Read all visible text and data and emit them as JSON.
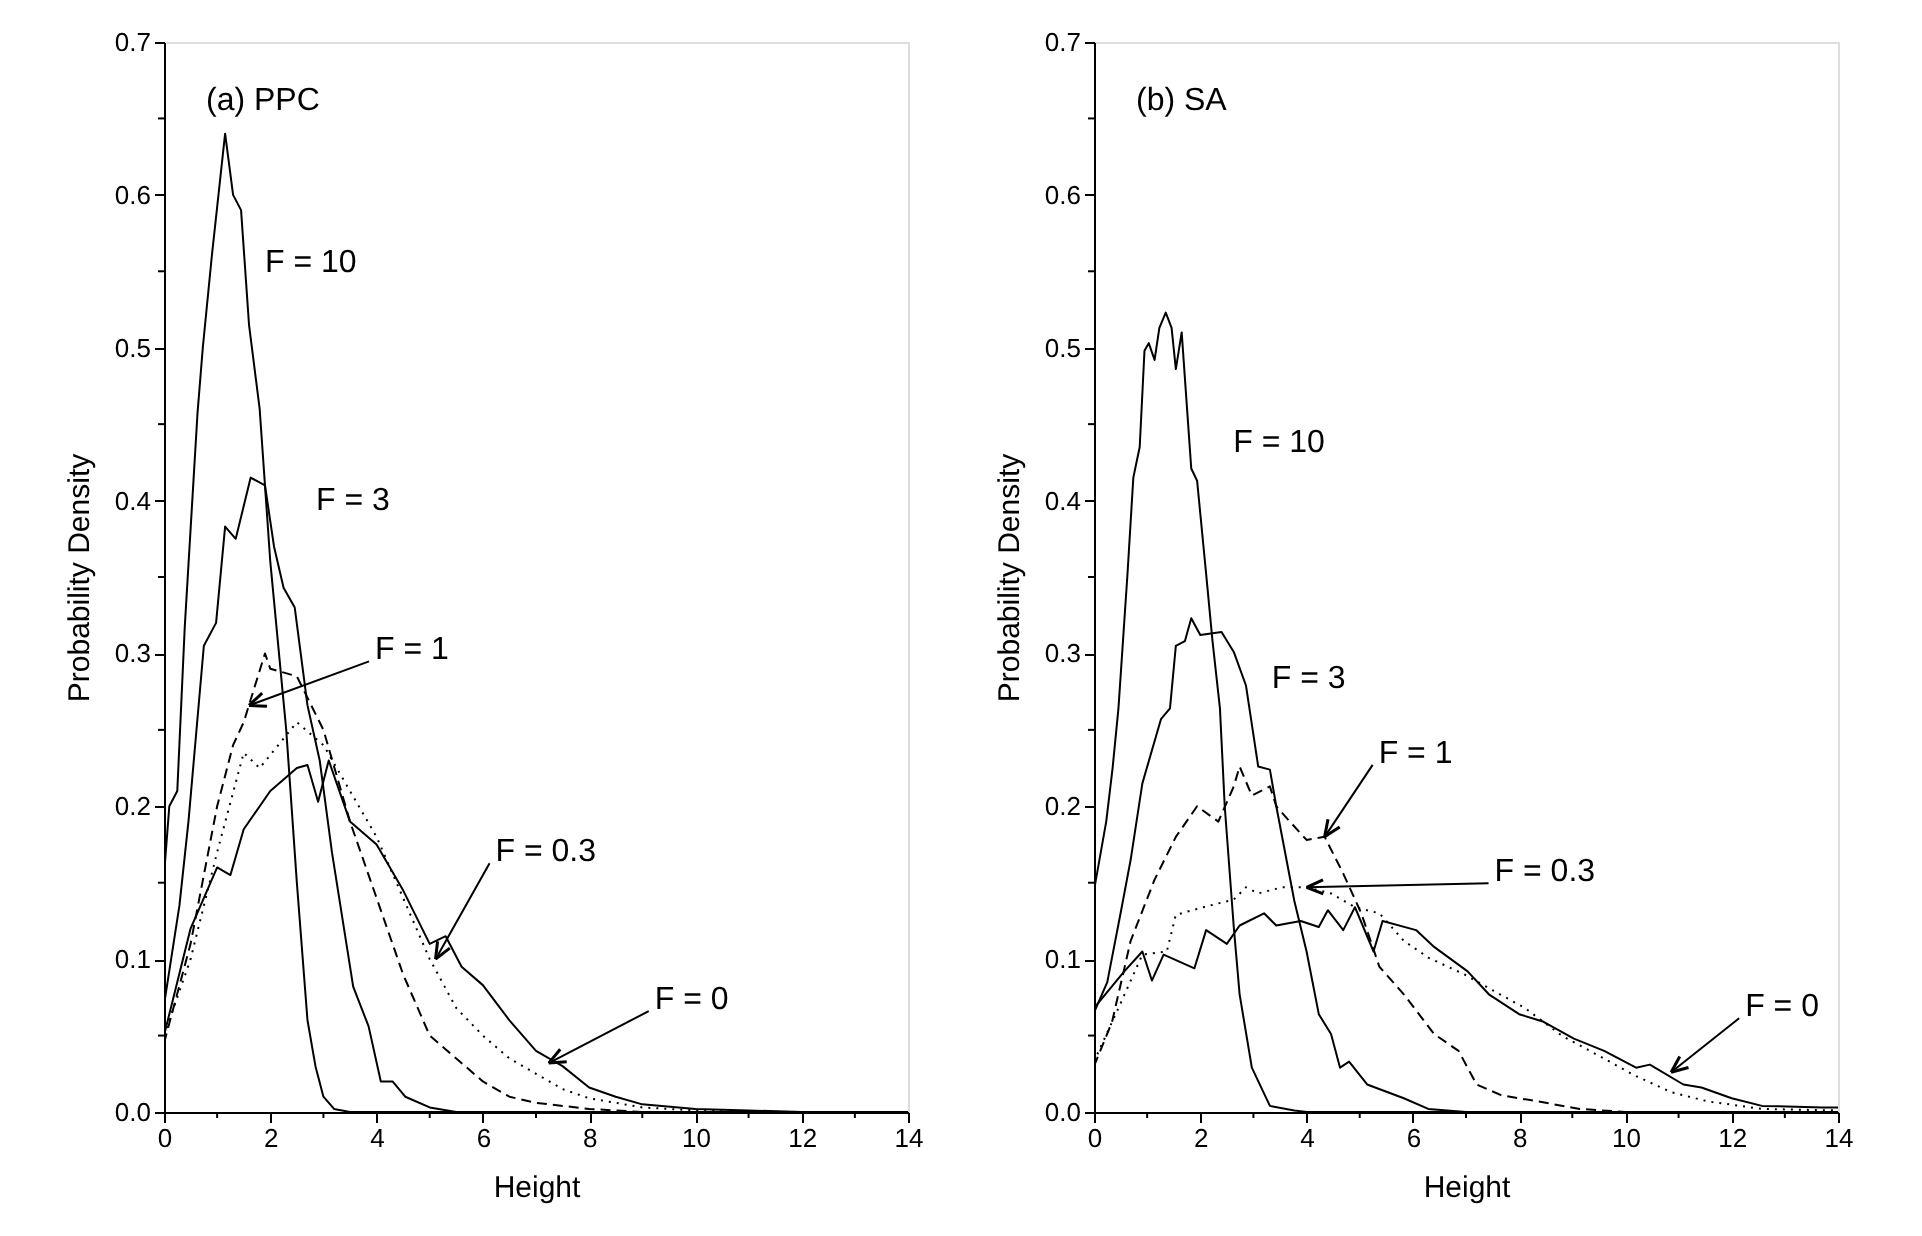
{
  "chart_data": [
    {
      "type": "line",
      "xlabel": "Height",
      "ylabel": "Probability Density",
      "xlim": [
        0,
        14
      ],
      "ylim": [
        0,
        0.7
      ],
      "xticks": [
        0,
        {
          "value": 1,
          "label": null
        },
        2,
        {
          "value": 3,
          "label": null
        },
        4,
        {
          "value": 5,
          "label": null
        },
        6,
        {
          "value": 7,
          "label": null
        },
        8,
        {
          "value": 9,
          "label": null
        },
        10,
        {
          "value": 11,
          "label": null
        },
        12,
        {
          "value": 13,
          "label": null
        },
        14
      ],
      "yticks": [
        {
          "value": 0,
          "label": "0.0"
        },
        {
          "value": 0.05,
          "label": null
        },
        0.1,
        {
          "value": 0.15,
          "label": null
        },
        0.2,
        {
          "value": 0.25,
          "label": null
        },
        0.3,
        {
          "value": 0.35,
          "label": null
        },
        0.4,
        {
          "value": 0.45,
          "label": null
        },
        0.5,
        {
          "value": 0.55,
          "label": null
        },
        0.6,
        {
          "value": 0.65,
          "label": null
        },
        0.7
      ],
      "grid": false,
      "marker": "none",
      "series": [
        {
          "color": "#000000",
          "line_style": "solid",
          "x": [
            0,
            0.5,
            1,
            1.25,
            1.5,
            2,
            2.5,
            2.7,
            2.9,
            3.1,
            3.5,
            4,
            4.5,
            5,
            5.3,
            5.6,
            6,
            6.5,
            7,
            7.5,
            8,
            8.5,
            9,
            10,
            11,
            12,
            14
          ],
          "values": [
            0.05,
            0.12,
            0.16,
            0.155,
            0.185,
            0.21,
            0.225,
            0.227,
            0.203,
            0.23,
            0.19,
            0.175,
            0.145,
            0.11,
            0.115,
            0.095,
            0.083,
            0.06,
            0.04,
            0.03,
            0.016,
            0.01,
            0.005,
            0.002,
            0.001,
            0,
            0
          ]
        },
        {
          "color": "#000000",
          "line_style": "dotted",
          "x": [
            0,
            0.5,
            1,
            1.5,
            1.8,
            2.5,
            3,
            3.5,
            4,
            4.5,
            5,
            5.5,
            6,
            6.5,
            7,
            7.5,
            8,
            9,
            10,
            11,
            14
          ],
          "values": [
            0.05,
            0.1,
            0.17,
            0.235,
            0.225,
            0.255,
            0.24,
            0.21,
            0.18,
            0.14,
            0.1,
            0.068,
            0.05,
            0.035,
            0.025,
            0.015,
            0.009,
            0.003,
            0.001,
            0,
            0
          ]
        },
        {
          "color": "#000000",
          "line_style": "dashed",
          "x": [
            0,
            0.5,
            1,
            1.3,
            1.5,
            1.9,
            2,
            2.5,
            3,
            3.5,
            4,
            4.5,
            5,
            5.5,
            6,
            6.5,
            7,
            8,
            9,
            14
          ],
          "values": [
            0.045,
            0.11,
            0.2,
            0.24,
            0.255,
            0.3,
            0.29,
            0.285,
            0.25,
            0.19,
            0.14,
            0.09,
            0.05,
            0.035,
            0.02,
            0.01,
            0.006,
            0.002,
            0,
            0
          ]
        },
        {
          "color": "#000000",
          "line_style": "solid",
          "x": [
            0,
            0.29,
            0.46,
            0.75,
            0.98,
            1.15,
            1.35,
            1.63,
            1.9,
            2.07,
            2.25,
            2.46,
            2.7,
            2.93,
            3.16,
            3.56,
            3.85,
            4.08,
            4.3,
            4.54,
            5,
            5.5,
            7,
            14
          ],
          "values": [
            0.07,
            0.135,
            0.19,
            0.305,
            0.32,
            0.383,
            0.375,
            0.415,
            0.41,
            0.37,
            0.343,
            0.33,
            0.266,
            0.23,
            0.17,
            0.082,
            0.056,
            0.02,
            0.02,
            0.01,
            0.003,
            0,
            0,
            0
          ]
        },
        {
          "color": "#000000",
          "line_style": "solid",
          "x": [
            0,
            0.1,
            0.25,
            0.39,
            0.63,
            0.73,
            0.9,
            1.15,
            1.3,
            1.45,
            1.6,
            1.8,
            2,
            2.3,
            2.5,
            2.7,
            2.85,
            3,
            3.2,
            3.5,
            14
          ],
          "values": [
            0.155,
            0.2,
            0.21,
            0.317,
            0.457,
            0.5,
            0.56,
            0.64,
            0.6,
            0.59,
            0.515,
            0.46,
            0.36,
            0.25,
            0.15,
            0.06,
            0.03,
            0.01,
            0.002,
            0,
            0
          ]
        }
      ],
      "annotations": [
        "(a) PPC",
        {
          "text": "F = 10",
          "x": 1.45,
          "y": 0.59
        },
        {
          "text": "F = 3",
          "x": 2.07,
          "y": 0.37
        },
        {
          "text": "F = 1",
          "x": 1.6,
          "y": 0.266
        },
        {
          "text": "F = 0.3",
          "x": 5.11,
          "y": 0.1
        },
        {
          "text": "F = 0",
          "x": 7.24,
          "y": 0.032
        }
      ]
    },
    {
      "type": "line",
      "xlabel": "Height",
      "ylabel": "Probability Density",
      "xlim": [
        0,
        14
      ],
      "ylim": [
        0,
        0.7
      ],
      "xticks": [
        0,
        {
          "value": 1,
          "label": null
        },
        2,
        {
          "value": 3,
          "label": null
        },
        4,
        {
          "value": 5,
          "label": null
        },
        6,
        {
          "value": 7,
          "label": null
        },
        8,
        {
          "value": 9,
          "label": null
        },
        10,
        {
          "value": 11,
          "label": null
        },
        12,
        {
          "value": 13,
          "label": null
        },
        14
      ],
      "yticks": [
        {
          "value": 0,
          "label": "0.0"
        },
        {
          "value": 0.05,
          "label": null
        },
        0.1,
        {
          "value": 0.15,
          "label": null
        },
        0.2,
        {
          "value": 0.25,
          "label": null
        },
        0.3,
        {
          "value": 0.35,
          "label": null
        },
        0.4,
        {
          "value": 0.45,
          "label": null
        },
        0.5,
        {
          "value": 0.55,
          "label": null
        },
        0.6,
        {
          "value": 0.65,
          "label": null
        },
        0.7
      ],
      "grid": false,
      "marker": "none",
      "series": [
        {
          "color": "#000000",
          "line_style": "solid",
          "x": [
            0,
            0.57,
            0.91,
            1.09,
            1.31,
            1.89,
            2.11,
            2.5,
            2.74,
            3.2,
            3.43,
            3.89,
            4.23,
            4.4,
            4.69,
            4.91,
            5.26,
            5.43,
            6.06,
            6.4,
            7.03,
            7.43,
            8.0,
            8.46,
            9.03,
            9.6,
            10.2,
            10.46,
            11.09,
            11.43,
            12,
            12.57,
            13.71,
            14
          ],
          "values": [
            0.068,
            0.092,
            0.105,
            0.086,
            0.103,
            0.094,
            0.119,
            0.11,
            0.122,
            0.13,
            0.122,
            0.125,
            0.121,
            0.132,
            0.119,
            0.134,
            0.105,
            0.125,
            0.119,
            0.108,
            0.092,
            0.077,
            0.064,
            0.059,
            0.048,
            0.04,
            0.029,
            0.031,
            0.018,
            0.016,
            0.009,
            0.004,
            0.003,
            0.003
          ]
        },
        {
          "color": "#000000",
          "line_style": "dotted",
          "x": [
            0,
            0.46,
            0.91,
            1.37,
            1.54,
            2.06,
            2.63,
            2.86,
            3.09,
            3.54,
            4,
            4.46,
            4.91,
            5.37,
            5.83,
            6.29,
            6.97,
            7.43,
            8.11,
            8.8,
            9.49,
            10.17,
            10.86,
            11.54,
            12.57,
            14
          ],
          "values": [
            0.033,
            0.068,
            0.103,
            0.105,
            0.129,
            0.134,
            0.139,
            0.147,
            0.143,
            0.147,
            0.147,
            0.143,
            0.134,
            0.13,
            0.112,
            0.101,
            0.09,
            0.081,
            0.068,
            0.05,
            0.037,
            0.024,
            0.013,
            0.007,
            0.002,
            0.001
          ]
        },
        {
          "color": "#000000",
          "line_style": "dashed",
          "x": [
            0,
            0.34,
            0.69,
            1.14,
            1.54,
            1.94,
            2.34,
            2.63,
            2.74,
            2.97,
            3.31,
            3.43,
            3.66,
            4,
            4.34,
            4.69,
            5.03,
            5.37,
            5.83,
            6.4,
            6.86,
            7.2,
            7.66,
            8.34,
            9.14,
            10,
            14
          ],
          "values": [
            0.03,
            0.059,
            0.112,
            0.152,
            0.18,
            0.2,
            0.19,
            0.213,
            0.226,
            0.207,
            0.213,
            0.2,
            0.191,
            0.178,
            0.18,
            0.156,
            0.13,
            0.095,
            0.077,
            0.051,
            0.04,
            0.018,
            0.011,
            0.007,
            0.002,
            0,
            0
          ]
        },
        {
          "color": "#000000",
          "line_style": "solid",
          "x": [
            0,
            0.25,
            0.5,
            0.69,
            0.91,
            1.26,
            1.43,
            1.54,
            1.71,
            1.83,
            2.0,
            2.4,
            2.63,
            2.86,
            3.09,
            3.31,
            3.43,
            3.77,
            4,
            4.23,
            4.46,
            4.63,
            4.8,
            5.14,
            5.83,
            6.29,
            7,
            14
          ],
          "values": [
            0.065,
            0.085,
            0.13,
            0.165,
            0.215,
            0.257,
            0.264,
            0.305,
            0.308,
            0.323,
            0.312,
            0.314,
            0.301,
            0.279,
            0.226,
            0.224,
            0.2,
            0.138,
            0.105,
            0.064,
            0.051,
            0.029,
            0.033,
            0.018,
            0.009,
            0.002,
            0,
            0
          ]
        },
        {
          "color": "#000000",
          "line_style": "solid",
          "x": [
            0,
            0.23,
            0.35,
            0.46,
            0.63,
            0.74,
            0.86,
            0.95,
            1.03,
            1.14,
            1.23,
            1.35,
            1.46,
            1.54,
            1.65,
            1.83,
            1.94,
            2.11,
            2.23,
            2.37,
            2.46,
            2.63,
            2.74,
            2.97,
            3.31,
            3.77,
            4,
            14
          ],
          "values": [
            0.145,
            0.19,
            0.225,
            0.264,
            0.352,
            0.415,
            0.435,
            0.498,
            0.503,
            0.492,
            0.513,
            0.523,
            0.513,
            0.486,
            0.51,
            0.421,
            0.413,
            0.352,
            0.308,
            0.264,
            0.2,
            0.121,
            0.077,
            0.029,
            0.004,
            0.001,
            0,
            0
          ]
        }
      ],
      "annotations": [
        "(b) SA",
        {
          "text": "F = 10",
          "x": 1.83,
          "y": 0.421
        },
        {
          "text": "F = 3",
          "x": 2.63,
          "y": 0.301
        },
        {
          "text": "F = 1",
          "x": 4.34,
          "y": 0.18
        },
        {
          "text": "F = 0.3",
          "x": 4.0,
          "y": 0.147
        },
        {
          "text": "F = 0",
          "x": 10.86,
          "y": 0.026
        }
      ]
    }
  ]
}
